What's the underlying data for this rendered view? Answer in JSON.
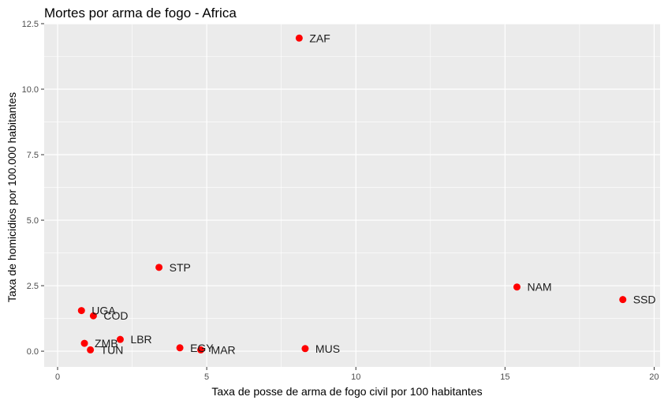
{
  "chart_data": {
    "type": "scatter",
    "title": "Mortes por arma de fogo - Africa",
    "xlabel": "Taxa de posse de arma de fogo civil por 100 habitantes",
    "ylabel": "Taxa de homicidios por 100.000 habitantes",
    "xlim": [
      -0.45,
      20.2
    ],
    "ylim": [
      -0.6,
      12.5
    ],
    "x_ticks": [
      0,
      5,
      10,
      15,
      20
    ],
    "x_tick_labels": [
      "0",
      "5",
      "10",
      "15",
      "20"
    ],
    "y_ticks": [
      0,
      2.5,
      5,
      7.5,
      10,
      12.5
    ],
    "y_tick_labels": [
      "0.0",
      "2.5",
      "5.0",
      "7.5",
      "10.0",
      "12.5"
    ],
    "grid": true,
    "point_color": "#ff0000",
    "panel_color": "#ebebeb",
    "points": [
      {
        "label": "ZAF",
        "x": 8.1,
        "y": 11.95
      },
      {
        "label": "STP",
        "x": 3.4,
        "y": 3.2
      },
      {
        "label": "NAM",
        "x": 15.4,
        "y": 2.45
      },
      {
        "label": "SSD",
        "x": 18.95,
        "y": 1.97
      },
      {
        "label": "UGA",
        "x": 0.8,
        "y": 1.55
      },
      {
        "label": "COD",
        "x": 1.2,
        "y": 1.35
      },
      {
        "label": "LBR",
        "x": 2.1,
        "y": 0.45
      },
      {
        "label": "ZMB",
        "x": 0.9,
        "y": 0.3
      },
      {
        "label": "TUN",
        "x": 1.1,
        "y": 0.05
      },
      {
        "label": "EGY",
        "x": 4.1,
        "y": 0.13
      },
      {
        "label": "MAR",
        "x": 4.8,
        "y": 0.05
      },
      {
        "label": "MUS",
        "x": 8.3,
        "y": 0.1
      }
    ]
  }
}
